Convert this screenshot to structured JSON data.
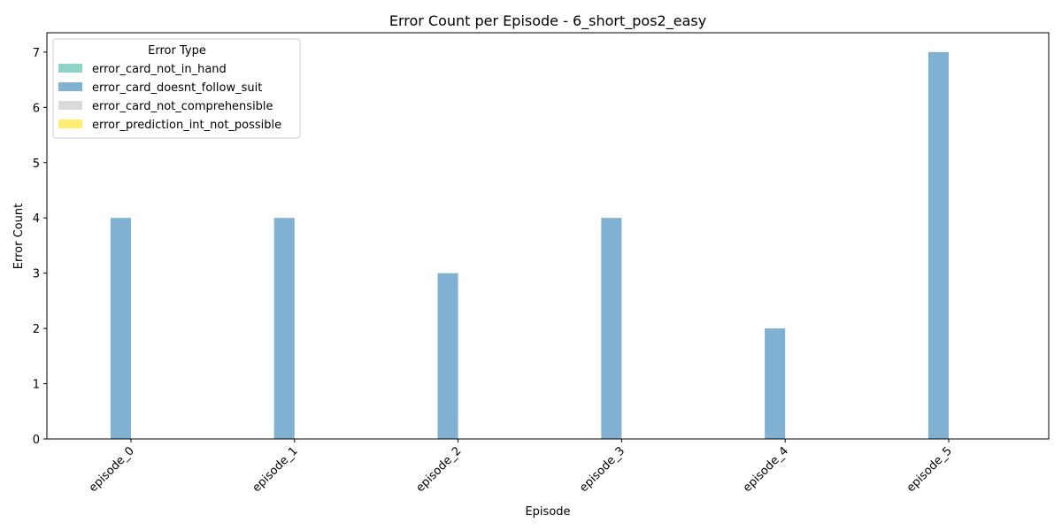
{
  "chart_data": {
    "type": "bar",
    "title": "Error Count per Episode - 6_short_pos2_easy",
    "xlabel": "Episode",
    "ylabel": "Error Count",
    "categories": [
      "episode_0",
      "episode_1",
      "episode_2",
      "episode_3",
      "episode_4",
      "episode_5"
    ],
    "series": [
      {
        "name": "error_card_not_in_hand",
        "color": "#8dd3c7",
        "values": [
          0,
          0,
          0,
          0,
          0,
          0
        ]
      },
      {
        "name": "error_card_doesnt_follow_suit",
        "color": "#80b1d3",
        "values": [
          4,
          4,
          3,
          4,
          2,
          7
        ]
      },
      {
        "name": "error_card_not_comprehensible",
        "color": "#d9d9d9",
        "values": [
          0,
          0,
          0,
          0,
          0,
          0
        ]
      },
      {
        "name": "error_prediction_int_not_possible",
        "color": "#ffed6f",
        "values": [
          0,
          0,
          0,
          0,
          0,
          0
        ]
      }
    ],
    "yticks": [
      0,
      1,
      2,
      3,
      4,
      5,
      6,
      7
    ],
    "ylim": [
      0,
      7.35
    ],
    "legend_title": "Error Type",
    "legend_position": "top-left",
    "grid": false
  }
}
